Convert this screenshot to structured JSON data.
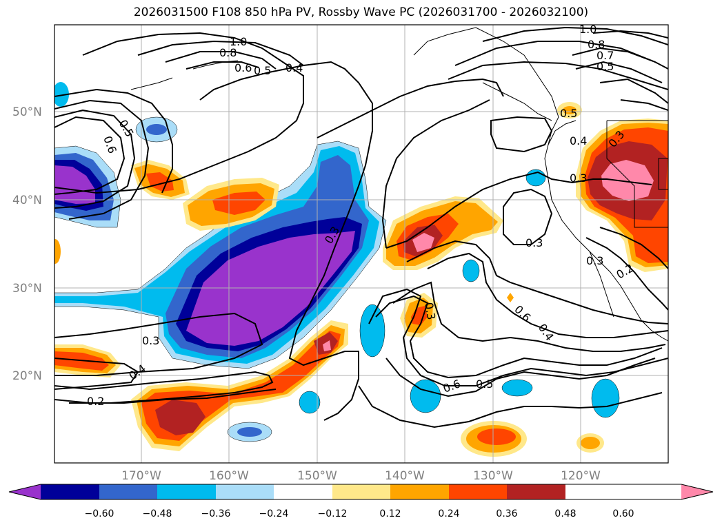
{
  "title": "2026031500 F108 850 hPa PV, Rossby Wave PC (2026031700 - 2026032100)",
  "axes": {
    "lat_labels": [
      "50°N",
      "40°N",
      "30°N",
      "20°N"
    ],
    "lon_labels": [
      "170°W",
      "160°W",
      "150°W",
      "140°W",
      "130°W",
      "120°W"
    ]
  },
  "colorbar": {
    "colors": [
      "#9933cc",
      "#000099",
      "#3366cc",
      "#00bbee",
      "#aaddf8",
      "#ffffff",
      "#ffe88a",
      "#ffa500",
      "#ff4500",
      "#b22222",
      "#ff88aa"
    ],
    "tick_labels": [
      "−0.60",
      "−0.48",
      "−0.36",
      "−0.24",
      "−0.12",
      "0.12",
      "0.24",
      "0.36",
      "0.48",
      "0.60"
    ]
  },
  "contour_labels": [
    "1.0",
    "0.8",
    "0.6",
    "0.5",
    "0.4",
    "0.5",
    "0.6",
    "1.0",
    "0.8",
    "0.7",
    "0.5",
    "0.4",
    "0.3",
    "0.3",
    "0.3",
    "0.3",
    "0.3",
    "0.3",
    "0.6",
    "0.4",
    "0.6",
    "0.5",
    "0.3",
    "0.4",
    "0.2",
    "0.2",
    "0.5"
  ]
}
